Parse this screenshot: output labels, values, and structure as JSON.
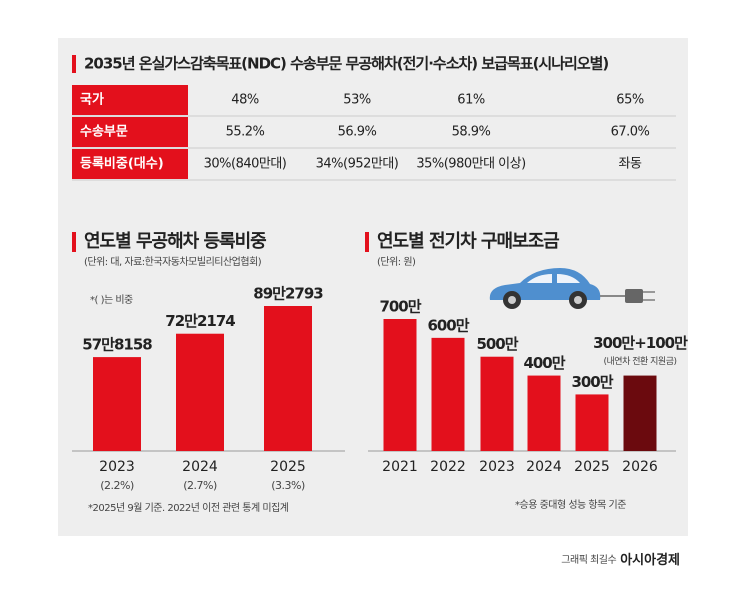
{
  "table": {
    "title": "2035년 온실가스감축목표(NDC) 수송부문 무공해차(전기·수소차) 보급목표(시나리오별)",
    "rows": [
      [
        "국가",
        "48%",
        "53%",
        "61%",
        "65%"
      ],
      [
        "수송부문",
        "55.2%",
        "56.9%",
        "58.9%",
        "67.0%"
      ],
      [
        "등록비중(대수)",
        "30%(840만대)",
        "34%(952만대)",
        "35%(980만대 이상)",
        "좌동"
      ]
    ]
  },
  "chart_data": [
    {
      "type": "bar",
      "title": "연도별 무공해차 등록비중",
      "subtitle": "(단위: 대, 자료:한국자동차모빌리티산업협회)",
      "note": "*( )는 비중",
      "categories": [
        "2023",
        "2024",
        "2025"
      ],
      "category_notes": [
        "(2.2%)",
        "(2.7%)",
        "(3.3%)"
      ],
      "values": [
        578158,
        722174,
        892793
      ],
      "value_labels": [
        "57만8158",
        "72만2174",
        "89만2793"
      ],
      "color": "#e3101c",
      "footnote": "*2025년 9월 기준. 2022년 이전 관련 통계 미집계"
    },
    {
      "type": "bar",
      "title": "연도별 전기차 구매보조금",
      "subtitle": "(단위: 원)",
      "categories": [
        "2021",
        "2022",
        "2023",
        "2024",
        "2025",
        "2026"
      ],
      "values": [
        7000000,
        6000000,
        5000000,
        4000000,
        3000000,
        4000000
      ],
      "value_labels": [
        "700만",
        "600만",
        "500만",
        "400만",
        "300만",
        "300만+100만"
      ],
      "annotation": "(내연차 전환 지원금)",
      "colors": [
        "#e3101c",
        "#e3101c",
        "#e3101c",
        "#e3101c",
        "#e3101c",
        "#6b0a0e"
      ],
      "footnote": "*승용 중대형 성능 항목 기준"
    }
  ],
  "credit": {
    "author": "그래픽 최길수",
    "publisher": "아시아경제"
  }
}
